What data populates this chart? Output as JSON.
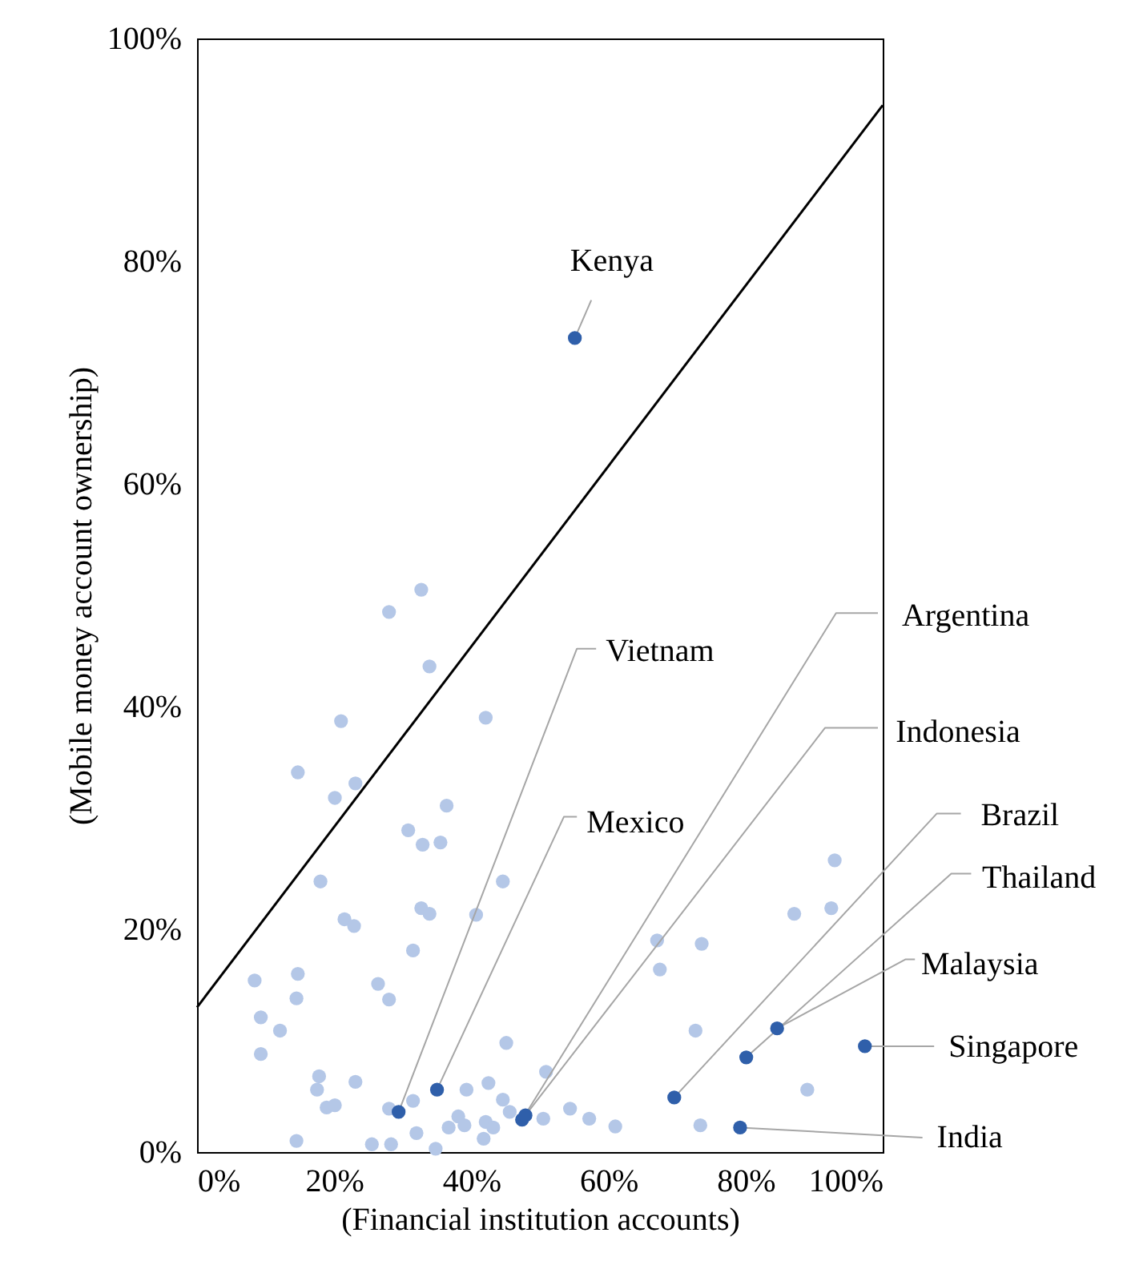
{
  "chart_data": {
    "type": "scatter",
    "xlabel": "(Financial institution accounts)",
    "ylabel": "(Mobile money account ownership)",
    "xlim": [
      0,
      100
    ],
    "ylim": [
      0,
      100
    ],
    "xticks": [
      {
        "value": 0,
        "label": "0%"
      },
      {
        "value": 20,
        "label": "20%"
      },
      {
        "value": 40,
        "label": "40%"
      },
      {
        "value": 60,
        "label": "60%"
      },
      {
        "value": 80,
        "label": "80%"
      },
      {
        "value": 100,
        "label": "100%"
      }
    ],
    "yticks": [
      {
        "value": 0,
        "label": "0%"
      },
      {
        "value": 20,
        "label": "20%"
      },
      {
        "value": 40,
        "label": "40%"
      },
      {
        "value": 60,
        "label": "60%"
      },
      {
        "value": 80,
        "label": "80%"
      },
      {
        "value": 100,
        "label": "100%"
      }
    ],
    "grid": false,
    "legend": false,
    "marker": "circle",
    "series": [
      {
        "color": "#b4c7e7",
        "x": [
          32.7,
          28.0,
          33.9,
          21.0,
          42.1,
          14.7,
          20.1,
          23.1,
          36.4,
          30.8,
          32.9,
          35.5,
          18.0,
          44.6,
          32.7,
          33.9,
          21.5,
          22.9,
          40.7,
          31.5,
          8.4,
          14.7,
          14.5,
          26.4,
          28.0,
          9.3,
          12.1,
          9.3,
          45.1,
          17.8,
          17.5,
          23.1,
          18.9,
          20.1,
          28.0,
          31.5,
          39.3,
          42.5,
          44.6,
          45.6,
          38.1,
          39.0,
          36.7,
          32.0,
          42.1,
          43.2,
          41.8,
          14.5,
          25.5,
          28.3,
          34.8,
          50.9,
          50.5,
          54.4,
          57.2,
          61.0,
          67.1,
          73.6,
          67.5,
          72.7,
          73.4,
          87.1,
          93.0,
          92.5,
          89.0
        ],
        "values": [
          50.5,
          48.5,
          43.6,
          38.7,
          39.0,
          34.1,
          31.8,
          33.1,
          31.1,
          28.9,
          27.6,
          27.8,
          24.3,
          24.3,
          21.9,
          21.4,
          20.9,
          20.3,
          21.3,
          18.1,
          15.4,
          16.0,
          13.8,
          15.1,
          13.7,
          12.1,
          10.9,
          8.8,
          9.8,
          6.8,
          5.6,
          6.3,
          4.0,
          4.2,
          3.9,
          4.6,
          5.6,
          6.2,
          4.7,
          3.6,
          3.2,
          2.4,
          2.2,
          1.7,
          2.7,
          2.2,
          1.2,
          1.0,
          0.7,
          0.7,
          0.3,
          7.2,
          3.0,
          3.9,
          3.0,
          2.3,
          19.0,
          18.7,
          16.4,
          10.9,
          2.4,
          21.4,
          26.2,
          21.9,
          5.6
        ]
      },
      {
        "color": "#2f5faa",
        "x": [
          55.1,
          29.4,
          35.0,
          47.4,
          47.9,
          69.6,
          80.1,
          84.6,
          97.4,
          79.2
        ],
        "values": [
          73.1,
          3.6,
          5.6,
          2.9,
          3.3,
          4.9,
          8.5,
          11.1,
          9.5,
          2.2
        ]
      },
      {
        "type": "line",
        "marker": "none",
        "color": "#000000",
        "x": [
          0,
          100
        ],
        "values": [
          13,
          94
        ]
      }
    ],
    "annotations": [
      {
        "text": "Kenya",
        "x": 55.1,
        "y": 73.1
      },
      {
        "text": "Vietnam",
        "x": 29.4,
        "y": 3.6
      },
      {
        "text": "Mexico",
        "x": 35.0,
        "y": 5.6
      },
      {
        "text": "Argentina",
        "x": 47.4,
        "y": 2.9
      },
      {
        "text": "Indonesia",
        "x": 47.9,
        "y": 3.3
      },
      {
        "text": "Brazil",
        "x": 69.6,
        "y": 4.9
      },
      {
        "text": "Thailand",
        "x": 80.1,
        "y": 8.5
      },
      {
        "text": "Malaysia",
        "x": 84.6,
        "y": 11.1
      },
      {
        "text": "Singapore",
        "x": 97.4,
        "y": 9.5
      },
      {
        "text": "India",
        "x": 79.2,
        "y": 2.2
      }
    ]
  }
}
